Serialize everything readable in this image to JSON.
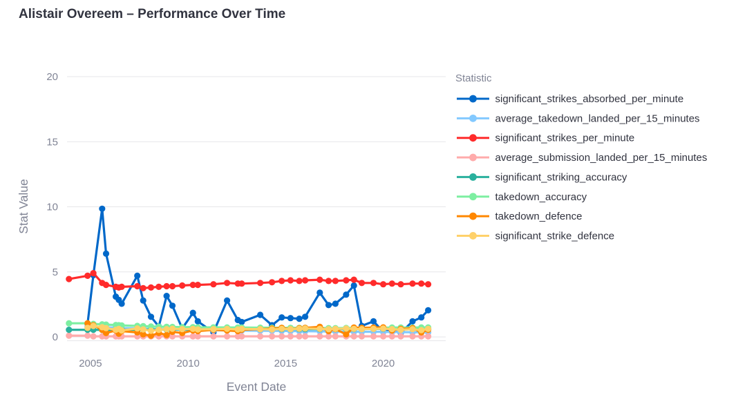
{
  "page": {
    "title": "Alistair Overeem – Performance Over Time"
  },
  "theme": {
    "title_color": "#31333f",
    "axis_text_color": "#808495",
    "legend_label_color": "#31333f",
    "grid_color": "#e6e6e9",
    "background": "#ffffff"
  },
  "chart_data": {
    "type": "line",
    "title": "Alistair Overeem – Performance Over Time",
    "xlabel": "Event Date",
    "ylabel": "Stat Value",
    "legend_title": "Statistic",
    "legend_position": "right",
    "grid": "horizontal",
    "ylim": [
      0,
      20
    ],
    "yticks": [
      0,
      5,
      10,
      15,
      20
    ],
    "xticks": [
      2005,
      2010,
      2015,
      2020
    ],
    "x_domain": [
      2003.8,
      2023.2
    ],
    "x_unit": "decimal_year",
    "x": [
      2003.9,
      2004.85,
      2005.15,
      2005.6,
      2005.8,
      2006.3,
      2006.45,
      2006.6,
      2007.4,
      2007.7,
      2008.1,
      2008.5,
      2008.9,
      2009.2,
      2009.7,
      2010.25,
      2010.5,
      2011.3,
      2012.0,
      2012.55,
      2012.75,
      2013.7,
      2014.3,
      2014.8,
      2015.25,
      2015.7,
      2016.0,
      2016.75,
      2017.2,
      2017.55,
      2018.1,
      2018.5,
      2018.9,
      2019.5,
      2020.0,
      2020.45,
      2020.9,
      2021.5,
      2021.95,
      2022.3
    ],
    "series": [
      {
        "name": "significant_strikes_absorbed_per_minute",
        "color": "#0068c9",
        "values": [
          null,
          1.0,
          4.75,
          9.85,
          6.4,
          3.1,
          2.85,
          2.55,
          4.7,
          2.8,
          1.55,
          0.8,
          3.15,
          2.4,
          0.65,
          1.85,
          1.2,
          0.35,
          2.8,
          1.3,
          1.15,
          1.7,
          0.9,
          1.5,
          1.45,
          1.4,
          1.55,
          3.4,
          2.45,
          2.55,
          3.25,
          3.95,
          0.85,
          1.2,
          0.4,
          0.5,
          0.3,
          1.2,
          1.5,
          2.05
        ]
      },
      {
        "name": "average_takedown_landed_per_15_minutes",
        "color": "#83c9ff",
        "values": [
          null,
          0.8,
          0.78,
          0.76,
          0.74,
          0.72,
          0.7,
          0.68,
          0.66,
          0.64,
          0.62,
          0.6,
          0.6,
          0.58,
          0.56,
          0.55,
          0.54,
          0.52,
          0.5,
          0.5,
          0.49,
          0.48,
          0.47,
          0.46,
          0.45,
          0.45,
          0.44,
          0.43,
          0.42,
          0.42,
          0.41,
          0.4,
          0.4,
          0.4,
          0.39,
          0.38,
          0.37,
          0.36,
          0.36,
          0.35
        ]
      },
      {
        "name": "significant_strikes_per_minute",
        "color": "#ff2b2b",
        "values": [
          4.45,
          4.7,
          4.9,
          4.15,
          4.0,
          3.85,
          3.8,
          3.85,
          3.9,
          3.75,
          3.8,
          3.85,
          3.9,
          3.9,
          3.95,
          4.0,
          4.0,
          4.05,
          4.15,
          4.1,
          4.1,
          4.15,
          4.2,
          4.3,
          4.35,
          4.3,
          4.35,
          4.4,
          4.3,
          4.3,
          4.35,
          4.4,
          4.15,
          4.15,
          4.05,
          4.1,
          4.05,
          4.1,
          4.1,
          4.05
        ]
      },
      {
        "name": "average_submission_landed_per_15_minutes",
        "color": "#ffabab",
        "values": [
          0.1,
          0.1,
          0.05,
          0.05,
          0.05,
          0.05,
          0.05,
          0.05,
          0.05,
          0.05,
          0.05,
          0.05,
          0.05,
          0.05,
          0.05,
          0.05,
          0.05,
          0.05,
          0.05,
          0.05,
          0.05,
          0.05,
          0.05,
          0.05,
          0.05,
          0.05,
          0.05,
          0.05,
          0.05,
          0.05,
          0.05,
          0.05,
          0.05,
          0.05,
          0.05,
          0.05,
          0.05,
          0.05,
          0.05,
          0.05
        ]
      },
      {
        "name": "significant_striking_accuracy",
        "color": "#29b09d",
        "values": [
          0.55,
          0.55,
          0.55,
          0.54,
          0.54,
          0.55,
          0.55,
          0.55,
          0.56,
          0.56,
          0.57,
          0.57,
          0.57,
          0.58,
          0.58,
          0.58,
          0.58,
          0.59,
          0.59,
          0.59,
          0.59,
          0.6,
          0.6,
          0.6,
          0.6,
          0.6,
          0.6,
          0.6,
          0.61,
          0.61,
          0.61,
          0.61,
          0.61,
          0.62,
          0.62,
          0.62,
          0.62,
          0.62,
          0.62,
          0.62
        ]
      },
      {
        "name": "takedown_accuracy",
        "color": "#7defa1",
        "values": [
          1.05,
          1.05,
          1.0,
          0.97,
          0.95,
          0.92,
          0.9,
          0.88,
          0.85,
          0.83,
          0.8,
          0.79,
          0.78,
          0.77,
          0.76,
          0.75,
          0.74,
          0.74,
          0.73,
          0.72,
          0.72,
          0.71,
          0.71,
          0.7,
          0.7,
          0.7,
          0.7,
          0.69,
          0.68,
          0.68,
          0.69,
          0.7,
          0.7,
          0.7,
          0.71,
          0.72,
          0.72,
          0.72,
          0.73,
          0.73
        ]
      },
      {
        "name": "takedown_defence",
        "color": "#ff8700",
        "values": [
          null,
          1.05,
          0.9,
          0.55,
          0.3,
          0.5,
          0.25,
          0.45,
          0.35,
          0.2,
          0.1,
          0.3,
          0.15,
          0.4,
          0.3,
          0.5,
          0.45,
          0.55,
          0.5,
          0.45,
          0.55,
          0.6,
          0.65,
          0.7,
          0.6,
          0.68,
          0.7,
          0.78,
          0.45,
          0.6,
          0.2,
          0.72,
          0.7,
          0.72,
          0.74,
          0.5,
          0.62,
          0.68,
          0.35,
          0.55
        ]
      },
      {
        "name": "significant_strike_defence",
        "color": "#ffd16a",
        "values": [
          null,
          0.7,
          0.85,
          0.75,
          0.68,
          0.55,
          0.62,
          0.5,
          0.65,
          0.58,
          0.48,
          0.55,
          0.6,
          0.63,
          0.6,
          0.62,
          0.58,
          0.6,
          0.62,
          0.58,
          0.62,
          0.6,
          0.58,
          0.62,
          0.6,
          0.63,
          0.65,
          0.62,
          0.6,
          0.62,
          0.64,
          0.62,
          0.6,
          0.62,
          0.64,
          0.6,
          0.55,
          0.6,
          0.52,
          0.62
        ]
      }
    ]
  }
}
